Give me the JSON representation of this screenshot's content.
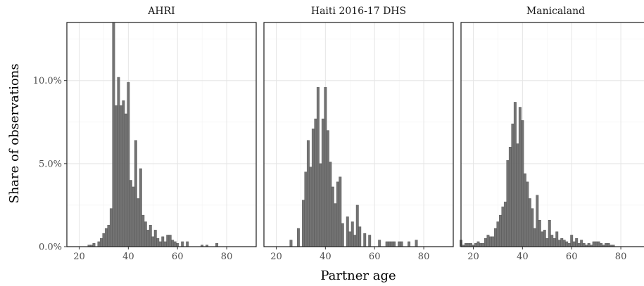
{
  "chart_data": {
    "type": "bar",
    "xlabel": "Partner age",
    "ylabel": "Share of observations",
    "xlim": [
      15,
      92
    ],
    "ylim": [
      0,
      13.5
    ],
    "x_ticks": [
      20,
      40,
      60,
      80
    ],
    "y_ticks": [
      0,
      5,
      10
    ],
    "y_tick_labels": [
      "0.0%",
      "5.0%",
      "10.0%"
    ],
    "bar_color": "#6b6b6b",
    "grid": true,
    "panels": [
      {
        "title": "AHRI",
        "ages": [
          20,
          21,
          22,
          23,
          24,
          25,
          26,
          27,
          28,
          29,
          30,
          31,
          32,
          33,
          34,
          35,
          36,
          37,
          38,
          39,
          40,
          41,
          42,
          43,
          44,
          45,
          46,
          47,
          48,
          49,
          50,
          51,
          52,
          53,
          54,
          55,
          56,
          57,
          58,
          59,
          60,
          61,
          62,
          63,
          64,
          65,
          66,
          67,
          68,
          69,
          70,
          71,
          72,
          73,
          74,
          75,
          76,
          77,
          78,
          79,
          80,
          81,
          82,
          83,
          84,
          85,
          86,
          87,
          88,
          89,
          90
        ],
        "values": [
          0,
          0,
          0,
          0,
          0.1,
          0.1,
          0.2,
          0,
          0.3,
          0.5,
          0.8,
          1.1,
          1.3,
          2.3,
          13.5,
          8.5,
          10.2,
          8.5,
          8.8,
          8.0,
          9.9,
          4.0,
          3.6,
          6.4,
          2.9,
          4.7,
          1.9,
          1.5,
          1.0,
          1.3,
          0.6,
          1.0,
          0.5,
          0.3,
          0.6,
          0.3,
          0.7,
          0.7,
          0.4,
          0.3,
          0.2,
          0,
          0.3,
          0,
          0.3,
          0,
          0,
          0,
          0,
          0,
          0.1,
          0,
          0.1,
          0,
          0,
          0,
          0.2,
          0,
          0,
          0,
          0,
          0,
          0,
          0,
          0,
          0,
          0,
          0,
          0,
          0,
          0
        ]
      },
      {
        "title": "Haiti 2016-17 DHS",
        "ages": [
          20,
          21,
          22,
          23,
          24,
          25,
          26,
          27,
          28,
          29,
          30,
          31,
          32,
          33,
          34,
          35,
          36,
          37,
          38,
          39,
          40,
          41,
          42,
          43,
          44,
          45,
          46,
          47,
          48,
          49,
          50,
          51,
          52,
          53,
          54,
          55,
          56,
          57,
          58,
          59,
          60,
          61,
          62,
          63,
          64,
          65,
          66,
          67,
          68,
          69,
          70,
          71,
          72,
          73,
          74,
          75,
          76,
          77,
          78,
          79,
          80,
          81,
          82,
          83,
          84,
          85,
          86,
          87,
          88,
          89,
          90
        ],
        "values": [
          0,
          0,
          0,
          0,
          0,
          0,
          0.4,
          0,
          0,
          1.1,
          0,
          2.8,
          4.5,
          6.4,
          4.8,
          7.1,
          7.7,
          9.6,
          5.0,
          7.7,
          9.6,
          7.0,
          5.1,
          3.6,
          2.6,
          3.9,
          4.2,
          1.4,
          0,
          1.8,
          0.9,
          1.5,
          0.7,
          2.5,
          1.2,
          0,
          0.8,
          0,
          0.7,
          0,
          0,
          0,
          0.4,
          0,
          0,
          0.3,
          0.3,
          0.3,
          0.3,
          0,
          0.3,
          0.3,
          0,
          0,
          0.3,
          0,
          0,
          0.4,
          0,
          0,
          0,
          0,
          0,
          0,
          0,
          0,
          0,
          0,
          0,
          0,
          0
        ]
      },
      {
        "title": "Manicaland",
        "ages": [
          15,
          16,
          17,
          18,
          19,
          20,
          21,
          22,
          23,
          24,
          25,
          26,
          27,
          28,
          29,
          30,
          31,
          32,
          33,
          34,
          35,
          36,
          37,
          38,
          39,
          40,
          41,
          42,
          43,
          44,
          45,
          46,
          47,
          48,
          49,
          50,
          51,
          52,
          53,
          54,
          55,
          56,
          57,
          58,
          59,
          60,
          61,
          62,
          63,
          64,
          65,
          66,
          67,
          68,
          69,
          70,
          71,
          72,
          73,
          74,
          75,
          76,
          77,
          78,
          79,
          80,
          81,
          82,
          83,
          84,
          85,
          86,
          87,
          88,
          89,
          90
        ],
        "values": [
          0.4,
          0.1,
          0.2,
          0.2,
          0.2,
          0.1,
          0.2,
          0.3,
          0.2,
          0.2,
          0.5,
          0.7,
          0.6,
          0.6,
          1.1,
          1.5,
          1.9,
          2.4,
          2.7,
          5.2,
          6.0,
          7.4,
          8.7,
          6.2,
          8.4,
          7.6,
          4.4,
          3.9,
          2.9,
          2.3,
          1.1,
          3.1,
          1.6,
          0.9,
          1.0,
          0.5,
          1.6,
          0.7,
          0.5,
          0.9,
          0.4,
          0.5,
          0.4,
          0.3,
          0.2,
          0.7,
          0.3,
          0.5,
          0.2,
          0.4,
          0.2,
          0.1,
          0.2,
          0.1,
          0.3,
          0.3,
          0.3,
          0.2,
          0.1,
          0.2,
          0.2,
          0.1,
          0.1,
          0,
          0,
          0,
          0,
          0,
          0,
          0,
          0,
          0,
          0,
          0,
          0,
          0
        ]
      }
    ]
  }
}
